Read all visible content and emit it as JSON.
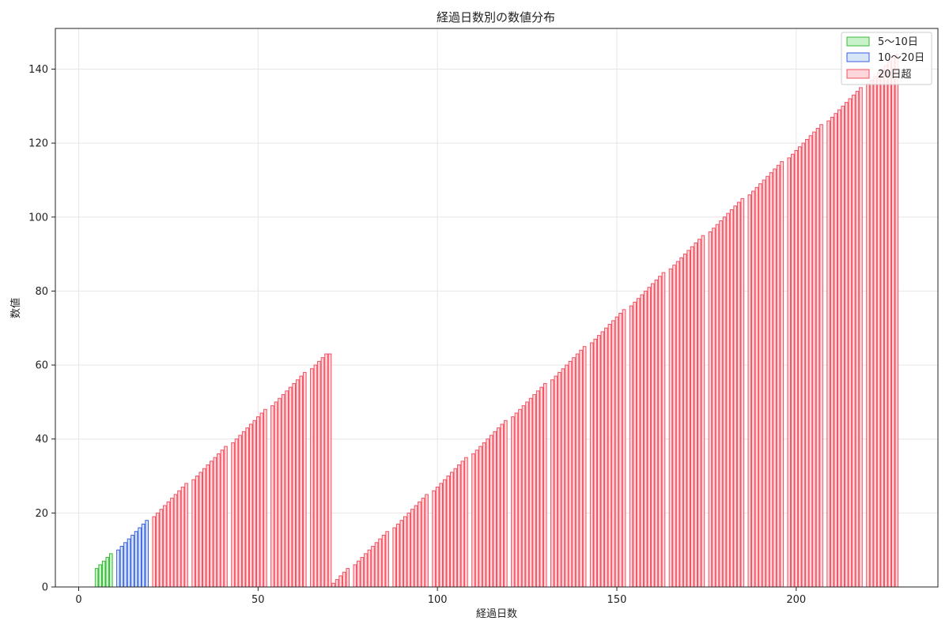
{
  "chart_data": {
    "type": "bar",
    "title": "経過日数別の数値分布",
    "xlabel": "経過日数",
    "ylabel": "数値",
    "xlim": [
      -6.5,
      239.5
    ],
    "ylim": [
      0,
      151
    ],
    "xticks": [
      0,
      50,
      100,
      150,
      200
    ],
    "yticks": [
      0,
      20,
      40,
      60,
      80,
      100,
      120,
      140
    ],
    "grid": true,
    "legend_position": "top-right",
    "series": [
      {
        "name": "5〜10日",
        "fill": "#c8f2c8",
        "edge": "#3cb83c",
        "x": [
          5,
          6,
          7,
          8,
          9
        ],
        "values": [
          5,
          6,
          7,
          8,
          9
        ]
      },
      {
        "name": "10〜20日",
        "fill": "#d6e6f8",
        "edge": "#3b5fe0",
        "x": [
          11,
          12,
          13,
          14,
          15,
          16,
          17,
          18,
          19
        ],
        "values": [
          10,
          11,
          12,
          13,
          14,
          15,
          16,
          17,
          18
        ]
      },
      {
        "name": "20日超",
        "fill": "#ffd6da",
        "edge": "#f05060",
        "x": [
          21,
          22,
          23,
          24,
          25,
          26,
          27,
          28,
          29,
          30,
          32,
          33,
          34,
          35,
          36,
          37,
          38,
          39,
          40,
          41,
          43,
          44,
          45,
          46,
          47,
          48,
          49,
          50,
          51,
          52,
          54,
          55,
          56,
          57,
          58,
          59,
          60,
          61,
          62,
          63,
          65,
          66,
          67,
          68,
          69,
          70,
          71,
          72,
          73,
          74,
          75,
          77,
          78,
          79,
          80,
          81,
          82,
          83,
          84,
          85,
          86,
          88,
          89,
          90,
          91,
          92,
          93,
          94,
          95,
          96,
          97,
          99,
          100,
          101,
          102,
          103,
          104,
          105,
          106,
          107,
          108,
          110,
          111,
          112,
          113,
          114,
          115,
          116,
          117,
          118,
          119,
          121,
          122,
          123,
          124,
          125,
          126,
          127,
          128,
          129,
          130,
          132,
          133,
          134,
          135,
          136,
          137,
          138,
          139,
          140,
          141,
          143,
          144,
          145,
          146,
          147,
          148,
          149,
          150,
          151,
          152,
          154,
          155,
          156,
          157,
          158,
          159,
          160,
          161,
          162,
          163,
          165,
          166,
          167,
          168,
          169,
          170,
          171,
          172,
          173,
          174,
          176,
          177,
          178,
          179,
          180,
          181,
          182,
          183,
          184,
          185,
          187,
          188,
          189,
          190,
          191,
          192,
          193,
          194,
          195,
          196,
          198,
          199,
          200,
          201,
          202,
          203,
          204,
          205,
          206,
          207,
          209,
          210,
          211,
          212,
          213,
          214,
          215,
          216,
          217,
          218,
          220,
          221,
          222,
          223,
          224,
          225,
          226,
          227,
          228
        ],
        "values": [
          19,
          20,
          21,
          22,
          23,
          24,
          25,
          26,
          27,
          28,
          29,
          30,
          31,
          32,
          33,
          34,
          35,
          36,
          37,
          38,
          39,
          40,
          41,
          42,
          43,
          44,
          45,
          46,
          47,
          48,
          49,
          50,
          51,
          52,
          53,
          54,
          55,
          56,
          57,
          58,
          59,
          60,
          61,
          62,
          63,
          63,
          1,
          2,
          3,
          4,
          5,
          6,
          7,
          8,
          9,
          10,
          11,
          12,
          13,
          14,
          15,
          16,
          17,
          18,
          19,
          20,
          21,
          22,
          23,
          24,
          25,
          26,
          27,
          28,
          29,
          30,
          31,
          32,
          33,
          34,
          35,
          36,
          37,
          38,
          39,
          40,
          41,
          42,
          43,
          44,
          45,
          46,
          47,
          48,
          49,
          50,
          51,
          52,
          53,
          54,
          55,
          56,
          57,
          58,
          59,
          60,
          61,
          62,
          63,
          64,
          65,
          66,
          67,
          68,
          69,
          70,
          71,
          72,
          73,
          74,
          75,
          76,
          77,
          78,
          79,
          80,
          81,
          82,
          83,
          84,
          85,
          86,
          87,
          88,
          89,
          90,
          91,
          92,
          93,
          94,
          95,
          96,
          97,
          98,
          99,
          100,
          101,
          102,
          103,
          104,
          105,
          106,
          107,
          108,
          109,
          110,
          111,
          112,
          113,
          114,
          115,
          116,
          117,
          118,
          119,
          120,
          121,
          122,
          123,
          124,
          125,
          126,
          127,
          128,
          129,
          130,
          131,
          132,
          133,
          134,
          135,
          136,
          137,
          138,
          139,
          140,
          141,
          142,
          143,
          144
        ]
      }
    ]
  }
}
